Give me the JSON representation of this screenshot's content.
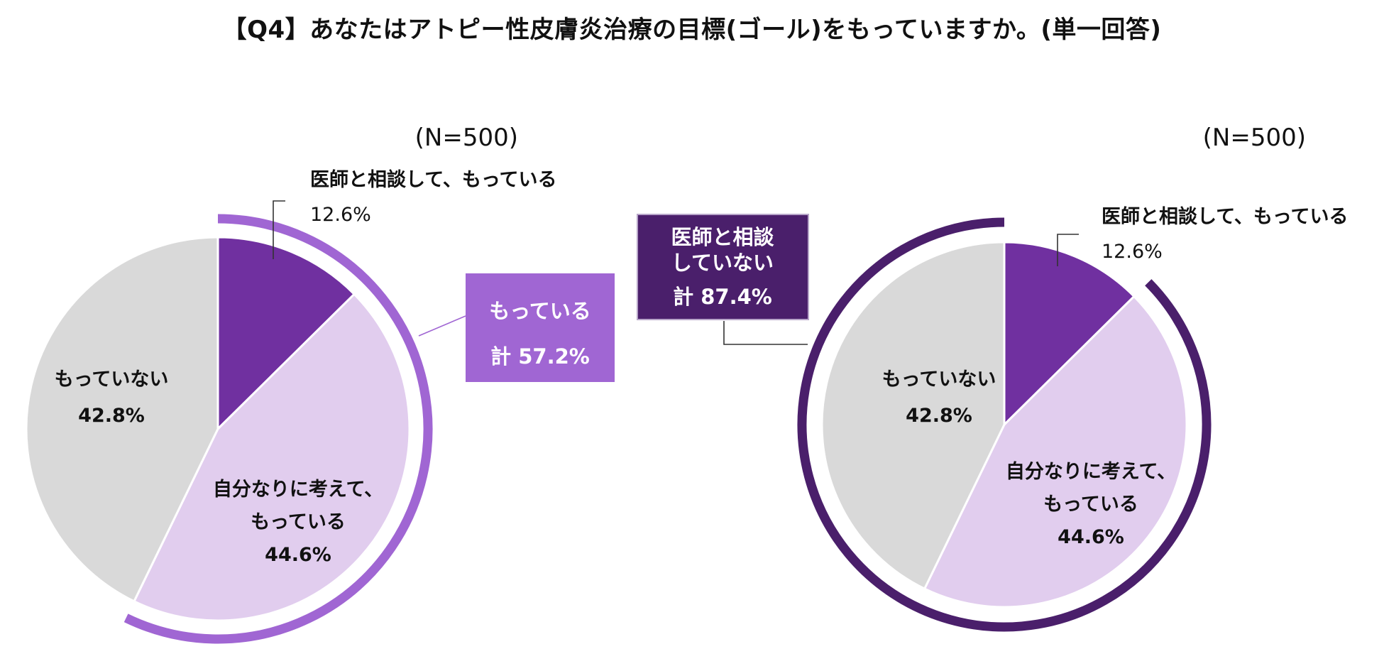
{
  "title": "【Q4】あなたはアトピー性皮膚炎治療の目標(ゴール)をもっていますか。(単一回答)",
  "colors": {
    "consulted": "#7030a0",
    "self": "#e1cdee",
    "none": "#d9d9d9",
    "bracket_left": "#a066d3",
    "bracket_right": "#4a1f6b",
    "box_left": "#a066d3",
    "box_right": "#4a1f6b"
  },
  "chart_data": [
    {
      "type": "pie",
      "n_label": "(N=500)",
      "slices": [
        {
          "key": "consulted",
          "label_lines": [
            "医師と相談して、もっている"
          ],
          "value": 12.6,
          "value_label": "12.6%"
        },
        {
          "key": "self",
          "label_lines": [
            "自分なりに考えて、",
            "もっている"
          ],
          "value": 44.6,
          "value_label": "44.6%"
        },
        {
          "key": "none",
          "label_lines": [
            "もっていない"
          ],
          "value": 42.8,
          "value_label": "42.8%"
        }
      ],
      "bracket": {
        "from": 0,
        "to": 2,
        "box_lines": [
          "もっている",
          "計 57.2%"
        ],
        "total": 57.2
      }
    },
    {
      "type": "pie",
      "n_label": "(N=500)",
      "slices": [
        {
          "key": "consulted",
          "label_lines": [
            "医師と相談して、もっている"
          ],
          "value": 12.6,
          "value_label": "12.6%"
        },
        {
          "key": "self",
          "label_lines": [
            "自分なりに考えて、",
            "もっている"
          ],
          "value": 44.6,
          "value_label": "44.6%"
        },
        {
          "key": "none",
          "label_lines": [
            "もっていない"
          ],
          "value": 42.8,
          "value_label": "42.8%"
        }
      ],
      "bracket": {
        "from": 1,
        "to": 3,
        "box_lines": [
          "医師と相談",
          "していない",
          "計 87.4%"
        ],
        "total": 87.4
      }
    }
  ]
}
